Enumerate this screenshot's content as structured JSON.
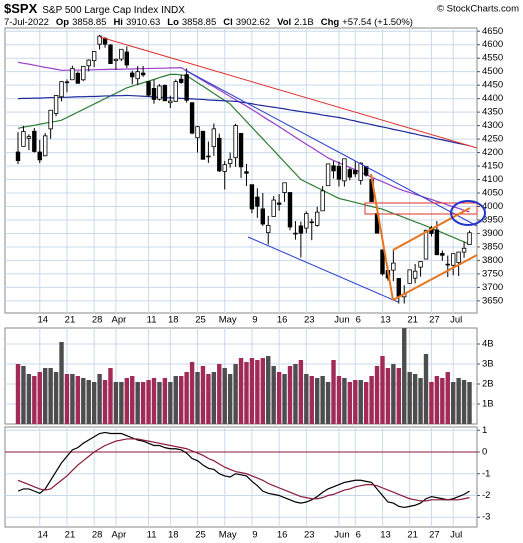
{
  "chart_data": [
    {
      "type": "candlestick",
      "title": "$SPX",
      "subtitle": "S&P 500 Large Cap Index INDX",
      "watermark": "© StockCharts.com",
      "date": "7-Jul-2022",
      "quote": [
        {
          "label": "Op",
          "text": "3858.85"
        },
        {
          "label": "Hi",
          "text": "3910.63"
        },
        {
          "label": "Lo",
          "text": "3858.85"
        },
        {
          "label": "Cl",
          "text": "3902.62"
        },
        {
          "label": "Vol",
          "text": "2.1B"
        },
        {
          "label": "Chg",
          "text": "+57.54 (+1.50%)"
        }
      ],
      "categories": [
        null,
        null,
        null,
        null,
        "14",
        null,
        null,
        null,
        null,
        "21",
        null,
        null,
        null,
        null,
        "28",
        null,
        null,
        null,
        "Apr",
        null,
        null,
        null,
        null,
        null,
        "11",
        null,
        null,
        null,
        "18",
        null,
        null,
        null,
        null,
        "25",
        null,
        null,
        null,
        null,
        "May",
        null,
        null,
        null,
        null,
        "9",
        null,
        null,
        null,
        null,
        "16",
        null,
        null,
        null,
        null,
        "23",
        null,
        null,
        null,
        null,
        null,
        "Jun",
        null,
        null,
        "6",
        null,
        null,
        null,
        null,
        "13",
        null,
        null,
        null,
        null,
        "21",
        null,
        null,
        null,
        "27",
        null,
        null,
        null,
        "Jul",
        null,
        null,
        null
      ],
      "open": [
        4202,
        4223,
        4253,
        4279,
        4202,
        4188,
        4288,
        4345,
        4407,
        4462,
        4470,
        4494,
        4470,
        4522,
        4541,
        4602,
        4624,
        4599,
        4541,
        4547,
        4573,
        4495,
        4474,
        4495,
        4463,
        4438,
        4398,
        4449,
        4385,
        4390,
        4472,
        4489,
        4385,
        4255,
        4279,
        4187,
        4222,
        4253,
        4130,
        4159,
        4181,
        4271,
        4129,
        4081,
        4035,
        3991,
        3903,
        3963,
        4013,
        4052,
        4052,
        3899,
        3928,
        3920,
        3943,
        3930,
        3984,
        4077,
        4151,
        4149,
        4095,
        4137,
        4134,
        4097,
        4148,
        4101,
        3974,
        3839,
        3763,
        3764,
        3733,
        3665,
        3715,
        3734,
        3775,
        3805,
        3920,
        3913,
        3826,
        3786,
        3782,
        3792,
        3831,
        3858.85
      ],
      "high": [
        4276,
        4299,
        4268,
        4291,
        4247,
        4272,
        4358,
        4412,
        4465,
        4471,
        4522,
        4501,
        4521,
        4546,
        4576,
        4637,
        4628,
        4603,
        4549,
        4583,
        4594,
        4504,
        4521,
        4521,
        4464,
        4471,
        4454,
        4453,
        4411,
        4471,
        4489,
        4512,
        4386,
        4299,
        4279,
        4241,
        4308,
        4270,
        4169,
        4200,
        4307,
        4271,
        4158,
        4081,
        4068,
        4050,
        3965,
        4039,
        4046,
        4088,
        4052,
        3946,
        3944,
        3982,
        3955,
        3999,
        4076,
        4158,
        4168,
        4166,
        4177,
        4143,
        4168,
        4164,
        4150,
        4119,
        3974,
        3839,
        3778,
        3838,
        3733,
        3708,
        3765,
        3787,
        3797,
        3913,
        3928,
        3946,
        3837,
        3818,
        3826,
        3832,
        3869,
        3910.63
      ],
      "low": [
        4157,
        4223,
        4209,
        4200,
        4161,
        4187,
        4251,
        4335,
        4390,
        4424,
        4470,
        4455,
        4465,
        4501,
        4517,
        4582,
        4589,
        4531,
        4507,
        4539,
        4514,
        4453,
        4450,
        4481,
        4408,
        4381,
        4393,
        4392,
        4365,
        4388,
        4455,
        4385,
        4268,
        4200,
        4175,
        4162,
        4188,
        4128,
        4063,
        4144,
        4147,
        4106,
        4076,
        3975,
        3958,
        3928,
        3859,
        3963,
        3984,
        4017,
        3912,
        3877,
        3811,
        3901,
        3875,
        3925,
        3984,
        4077,
        4104,
        4074,
        4074,
        4097,
        4109,
        4081,
        4111,
        4017,
        3900,
        3744,
        3725,
        3723,
        3640,
        3640,
        3715,
        3715,
        3740,
        3805,
        3889,
        3820,
        3799,
        3738,
        3745,
        3742,
        3810,
        3858.85
      ],
      "close": [
        4170,
        4278,
        4259,
        4204,
        4173,
        4262,
        4357,
        4412,
        4463,
        4461,
        4512,
        4457,
        4520,
        4543,
        4575,
        4632,
        4602,
        4530,
        4546,
        4583,
        4525,
        4481,
        4500,
        4488,
        4413,
        4397,
        4447,
        4392,
        4391,
        4463,
        4460,
        4394,
        4272,
        4296,
        4175,
        4184,
        4288,
        4132,
        4155,
        4175,
        4300,
        4147,
        4123,
        3991,
        4001,
        3935,
        3930,
        4024,
        4008,
        4088,
        3924,
        3901,
        3901,
        3974,
        3941,
        3979,
        4058,
        4158,
        4132,
        4101,
        4177,
        4109,
        4121,
        4161,
        4116,
        4018,
        3901,
        3750,
        3735,
        3790,
        3667,
        3675,
        3765,
        3760,
        3796,
        3912,
        3900,
        3821,
        3819,
        3785,
        3825,
        3831,
        3845,
        3902.62
      ],
      "up_color": "#ffffff",
      "down_color": "#000000",
      "overlays": [
        {
          "color": "#2e7d32",
          "values": [
            4290,
            4294,
            4298,
            4301,
            4305,
            4309,
            4313,
            4316,
            4320,
            4330,
            4340,
            4350,
            4360,
            4370,
            4380,
            4390,
            4400,
            4410,
            4420,
            4430,
            4440,
            4446,
            4453,
            4459,
            4465,
            4471,
            4478,
            4484,
            4490,
            4490,
            4488,
            4485,
            4472,
            4459,
            4446,
            4433,
            4419,
            4406,
            4393,
            4380,
            4358,
            4337,
            4315,
            4294,
            4272,
            4251,
            4229,
            4208,
            4186,
            4165,
            4143,
            4122,
            4100,
            4090,
            4080,
            4070,
            4060,
            4050,
            4040,
            4030,
            4025,
            4020,
            4015,
            4010,
            4005,
            4000,
            3995,
            3990,
            3982,
            3974,
            3967,
            3959,
            3951,
            3943,
            3936,
            3928,
            3920,
            3911,
            3903,
            3894,
            3886,
            3877,
            3869,
            3860
          ]
        },
        {
          "color": "#9b3fc8",
          "values": [
            4535,
            4531,
            4528,
            4524,
            4520,
            4516,
            4513,
            4509,
            4505,
            4505,
            4506,
            4506,
            4506,
            4507,
            4507,
            4508,
            4508,
            4509,
            4509,
            4509,
            4510,
            4510,
            4511,
            4511,
            4512,
            4512,
            4513,
            4513,
            4514,
            4514,
            4515,
            4503,
            4491,
            4479,
            4467,
            4455,
            4444,
            4432,
            4420,
            4408,
            4396,
            4384,
            4372,
            4360,
            4347,
            4334,
            4321,
            4309,
            4296,
            4283,
            4270,
            4257,
            4244,
            4231,
            4219,
            4206,
            4193,
            4180,
            4171,
            4162,
            4153,
            4145,
            4136,
            4127,
            4118,
            4109,
            4100,
            4092,
            4083,
            4074,
            4065,
            4058,
            4052,
            4045,
            4039,
            4032,
            4026,
            4019,
            4013,
            4006,
            3999,
            3993,
            3986,
            3980
          ]
        },
        {
          "color": "#1f2a9c",
          "values": [
            4400,
            4401,
            4401,
            4402,
            4402,
            4403,
            4404,
            4404,
            4405,
            4405,
            4406,
            4407,
            4407,
            4408,
            4408,
            4409,
            4410,
            4410,
            4411,
            4411,
            4412,
            4411,
            4410,
            4409,
            4408,
            4406,
            4405,
            4404,
            4403,
            4402,
            4401,
            4400,
            4399,
            4398,
            4397,
            4395,
            4394,
            4393,
            4392,
            4391,
            4390,
            4387,
            4384,
            4381,
            4377,
            4374,
            4371,
            4368,
            4365,
            4362,
            4358,
            4355,
            4352,
            4349,
            4346,
            4343,
            4339,
            4336,
            4333,
            4330,
            4326,
            4321,
            4317,
            4312,
            4308,
            4304,
            4299,
            4295,
            4291,
            4286,
            4282,
            4278,
            4273,
            4269,
            4264,
            4260,
            4256,
            4251,
            4247,
            4243,
            4238,
            4234,
            4230,
            4225
          ]
        }
      ],
      "ylim": [
        3605,
        4662
      ],
      "yticks": [
        3650,
        3700,
        3750,
        3800,
        3850,
        3900,
        3950,
        4000,
        4050,
        4100,
        4150,
        4200,
        4250,
        4300,
        4350,
        4400,
        4450,
        4500,
        4550,
        4600,
        4650
      ],
      "grid": true
    },
    {
      "type": "bar",
      "values": [
        3.0,
        2.9,
        2.5,
        2.4,
        2.6,
        2.8,
        2.8,
        2.6,
        4.1,
        2.5,
        2.5,
        2.4,
        2.3,
        2.2,
        2.1,
        2.5,
        2.2,
        2.8,
        2.1,
        2.1,
        2.3,
        2.4,
        2.1,
        2.1,
        2.2,
        2.3,
        2.1,
        2.3,
        2.1,
        2.4,
        2.4,
        2.6,
        3.1,
        2.6,
        2.9,
        2.5,
        2.6,
        3.0,
        2.8,
        2.5,
        3.0,
        3.3,
        3.1,
        3.3,
        3.2,
        3.3,
        3.4,
        2.9,
        2.6,
        2.5,
        2.9,
        3.0,
        3.2,
        2.5,
        2.4,
        2.3,
        2.4,
        2.1,
        3.2,
        2.4,
        2.3,
        2.1,
        2.2,
        2.2,
        2.1,
        2.4,
        2.9,
        3.4,
        2.8,
        3.0,
        2.8,
        4.8,
        2.6,
        2.5,
        2.3,
        3.5,
        2.1,
        2.4,
        2.3,
        2.6,
        2.1,
        2.3,
        2.2,
        2.1
      ],
      "color": "#a12a57",
      "alt_color": "#4d4d4d",
      "ylim": [
        0,
        4.8
      ],
      "yticks": [
        {
          "value": 1,
          "label": "1B"
        },
        {
          "value": 2,
          "label": "2B"
        },
        {
          "value": 3,
          "label": "3B"
        },
        {
          "value": 4,
          "label": "4B"
        }
      ],
      "grid": true
    },
    {
      "type": "line",
      "series": [
        {
          "color": "#000000",
          "values": [
            -1.8,
            -1.7,
            -1.7,
            -1.8,
            -1.9,
            -1.7,
            -1.3,
            -0.9,
            -0.5,
            -0.2,
            0.1,
            0.2,
            0.4,
            0.55,
            0.7,
            0.85,
            0.9,
            0.85,
            0.85,
            0.85,
            0.75,
            0.65,
            0.55,
            0.5,
            0.4,
            0.3,
            0.3,
            0.2,
            0.15,
            0.15,
            0.1,
            -0.05,
            -0.3,
            -0.4,
            -0.6,
            -0.75,
            -0.8,
            -1.0,
            -1.1,
            -1.15,
            -1.0,
            -1.05,
            -1.1,
            -1.35,
            -1.55,
            -1.8,
            -1.9,
            -1.95,
            -2.0,
            -2.1,
            -2.2,
            -2.3,
            -2.35,
            -2.3,
            -2.2,
            -2.05,
            -1.85,
            -1.7,
            -1.6,
            -1.5,
            -1.4,
            -1.35,
            -1.3,
            -1.3,
            -1.35,
            -1.4,
            -1.7,
            -2.0,
            -2.3,
            -2.35,
            -2.5,
            -2.55,
            -2.5,
            -2.45,
            -2.35,
            -2.15,
            -2.05,
            -2.1,
            -2.15,
            -2.2,
            -2.15,
            -2.05,
            -1.95,
            -1.8
          ]
        },
        {
          "color": "#8b1a3a",
          "values": [
            -1.3,
            -1.4,
            -1.5,
            -1.6,
            -1.7,
            -1.75,
            -1.7,
            -1.5,
            -1.3,
            -1.1,
            -0.85,
            -0.6,
            -0.4,
            -0.2,
            0.0,
            0.15,
            0.3,
            0.4,
            0.5,
            0.55,
            0.6,
            0.6,
            0.6,
            0.55,
            0.5,
            0.45,
            0.4,
            0.35,
            0.3,
            0.25,
            0.2,
            0.15,
            0.05,
            -0.05,
            -0.15,
            -0.3,
            -0.4,
            -0.55,
            -0.7,
            -0.8,
            -0.9,
            -0.95,
            -1.0,
            -1.1,
            -1.2,
            -1.3,
            -1.45,
            -1.55,
            -1.65,
            -1.75,
            -1.85,
            -1.95,
            -2.05,
            -2.1,
            -2.15,
            -2.15,
            -2.1,
            -2.0,
            -1.95,
            -1.85,
            -1.75,
            -1.7,
            -1.6,
            -1.55,
            -1.5,
            -1.5,
            -1.55,
            -1.65,
            -1.75,
            -1.85,
            -1.95,
            -2.05,
            -2.15,
            -2.2,
            -2.25,
            -2.25,
            -2.2,
            -2.2,
            -2.2,
            -2.2,
            -2.2,
            -2.2,
            -2.15,
            -2.1
          ]
        }
      ],
      "zero_line_color": "#8b1a3a",
      "ylim": [
        -3.45,
        1.15
      ],
      "yticks": [
        -3,
        -2,
        -1,
        0,
        1
      ],
      "grid": true
    }
  ]
}
